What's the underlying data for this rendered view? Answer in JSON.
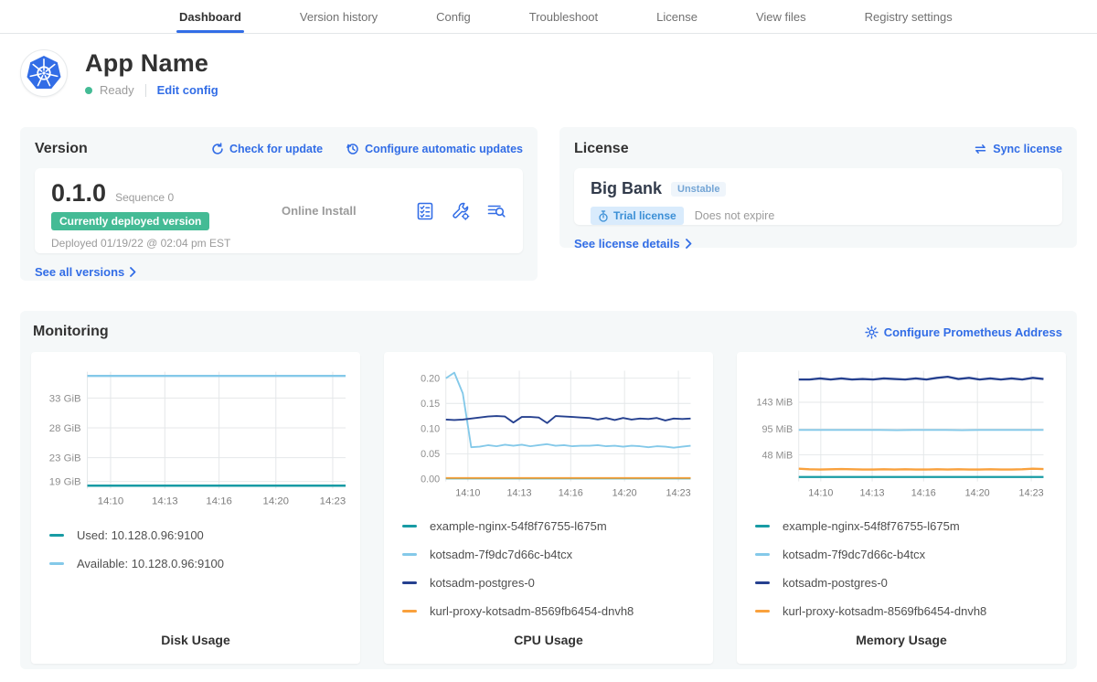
{
  "nav": {
    "tabs": [
      {
        "label": "Dashboard",
        "active": true
      },
      {
        "label": "Version history",
        "active": false
      },
      {
        "label": "Config",
        "active": false
      },
      {
        "label": "Troubleshoot",
        "active": false
      },
      {
        "label": "License",
        "active": false
      },
      {
        "label": "View files",
        "active": false
      },
      {
        "label": "Registry settings",
        "active": false
      }
    ]
  },
  "app": {
    "name": "App Name",
    "status": "Ready",
    "edit_config_label": "Edit config"
  },
  "version": {
    "title": "Version",
    "check_update_label": "Check for update",
    "configure_updates_label": "Configure automatic updates",
    "number": "0.1.0",
    "sequence_label": "Sequence 0",
    "deployed_badge_label": "Currently deployed version",
    "deployed_at": "Deployed 01/19/22 @ 02:04 pm EST",
    "install_type": "Online Install",
    "action_icons": [
      "preflight-checks-icon",
      "config-values-icon",
      "deploy-logs-icon"
    ],
    "see_all_label": "See all versions"
  },
  "license": {
    "title": "License",
    "sync_label": "Sync license",
    "name": "Big Bank",
    "channel_badge": "Unstable",
    "trial_badge_label": "Trial license",
    "expiry": "Does not expire",
    "details_label": "See license details"
  },
  "monitoring": {
    "title": "Monitoring",
    "configure_label": "Configure Prometheus Address"
  },
  "colors": {
    "accent_blue": "#326de6",
    "success_green": "#44bb95",
    "text_dark": "#323232",
    "text_gray": "#9b9b9b",
    "panel_bg": "#f5f8f9",
    "series_teal": "#189ba4",
    "series_light_blue": "#84c9e9",
    "series_navy": "#25408f",
    "series_orange": "#f9a13d",
    "grid": "#e4e7e9",
    "axis_text": "#8e8e8e"
  },
  "chart_data": [
    {
      "type": "line",
      "title": "Disk Usage",
      "xticks": {
        "labels": [
          "14:10",
          "14:13",
          "14:16",
          "14:20",
          "14:23"
        ],
        "fracs": [
          0.09,
          0.3,
          0.51,
          0.73,
          0.95
        ]
      },
      "yticks": {
        "values": [
          19,
          23,
          28,
          33
        ],
        "labels": [
          "19 GiB",
          "23 GiB",
          "28 GiB",
          "33 GiB"
        ]
      },
      "ylim": [
        17.8,
        37.4
      ],
      "series": [
        {
          "name": "Used: 10.128.0.96:9100",
          "color": "#189ba4",
          "width": 2.5,
          "values": [
            18.3,
            18.3
          ]
        },
        {
          "name": "Available: 10.128.0.96:9100",
          "color": "#84c9e9",
          "width": 2.5,
          "values": [
            36.7,
            36.7
          ]
        }
      ]
    },
    {
      "type": "line",
      "title": "CPU Usage",
      "xticks": {
        "labels": [
          "14:10",
          "14:13",
          "14:16",
          "14:20",
          "14:23"
        ],
        "fracs": [
          0.09,
          0.3,
          0.51,
          0.73,
          0.95
        ]
      },
      "yticks": {
        "values": [
          0,
          0.05,
          0.1,
          0.15,
          0.2
        ],
        "labels": [
          "0.00",
          "0.05",
          "0.10",
          "0.15",
          "0.20"
        ]
      },
      "ylim": [
        -0.005,
        0.215
      ],
      "series": [
        {
          "name": "example-nginx-54f8f76755-l675m",
          "color": "#189ba4",
          "width": 2,
          "values": [
            0.001,
            0.001
          ]
        },
        {
          "name": "kotsadm-7f9dc7d66c-b4tcx",
          "color": "#84c9e9",
          "width": 2,
          "values": [
            0.2,
            0.211,
            0.17,
            0.063,
            0.064,
            0.067,
            0.065,
            0.068,
            0.066,
            0.068,
            0.065,
            0.067,
            0.069,
            0.066,
            0.067,
            0.065,
            0.066,
            0.066,
            0.067,
            0.065,
            0.066,
            0.064,
            0.066,
            0.065,
            0.063,
            0.065,
            0.064,
            0.062,
            0.064,
            0.066
          ]
        },
        {
          "name": "kotsadm-postgres-0",
          "color": "#25408f",
          "width": 2,
          "values": [
            0.118,
            0.117,
            0.118,
            0.12,
            0.122,
            0.124,
            0.125,
            0.124,
            0.112,
            0.123,
            0.123,
            0.122,
            0.111,
            0.125,
            0.124,
            0.123,
            0.122,
            0.121,
            0.118,
            0.121,
            0.117,
            0.121,
            0.118,
            0.12,
            0.119,
            0.121,
            0.116,
            0.12,
            0.119,
            0.12
          ]
        },
        {
          "name": "kurl-proxy-kotsadm-8569fb6454-dnvh8",
          "color": "#f9a13d",
          "width": 2,
          "values": [
            0.002,
            0.002
          ]
        }
      ]
    },
    {
      "type": "line",
      "title": "Memory Usage",
      "xticks": {
        "labels": [
          "14:10",
          "14:13",
          "14:16",
          "14:20",
          "14:23"
        ],
        "fracs": [
          0.09,
          0.3,
          0.51,
          0.73,
          0.95
        ]
      },
      "yticks": {
        "values": [
          48,
          95,
          143
        ],
        "labels": [
          "48 MiB",
          "95 MiB",
          "143 MiB"
        ]
      },
      "ylim": [
        0,
        200
      ],
      "series": [
        {
          "name": "example-nginx-54f8f76755-l675m",
          "color": "#189ba4",
          "width": 2.5,
          "values": [
            8,
            8
          ]
        },
        {
          "name": "kotsadm-7f9dc7d66c-b4tcx",
          "color": "#84c9e9",
          "width": 2,
          "values": [
            93,
            93,
            93,
            93,
            93,
            93,
            92.5,
            93,
            93,
            93,
            92.6,
            93,
            93,
            93,
            93,
            93
          ]
        },
        {
          "name": "kotsadm-postgres-0",
          "color": "#25408f",
          "width": 2.5,
          "values": [
            184,
            184,
            186,
            184,
            186,
            184,
            185,
            184,
            186,
            185,
            184,
            186,
            184,
            187,
            189,
            185,
            187,
            184,
            186,
            184,
            186,
            184,
            187,
            185
          ]
        },
        {
          "name": "kurl-proxy-kotsadm-8569fb6454-dnvh8",
          "color": "#f9a13d",
          "width": 2.5,
          "values": [
            23,
            22,
            21.5,
            22,
            22.5,
            22,
            21.5,
            21.5,
            22,
            21.5,
            22,
            21.5,
            21.5,
            22,
            21.5,
            22,
            21.5,
            21.5,
            22,
            21.5,
            21.5,
            22,
            23,
            22.5
          ]
        }
      ]
    }
  ]
}
